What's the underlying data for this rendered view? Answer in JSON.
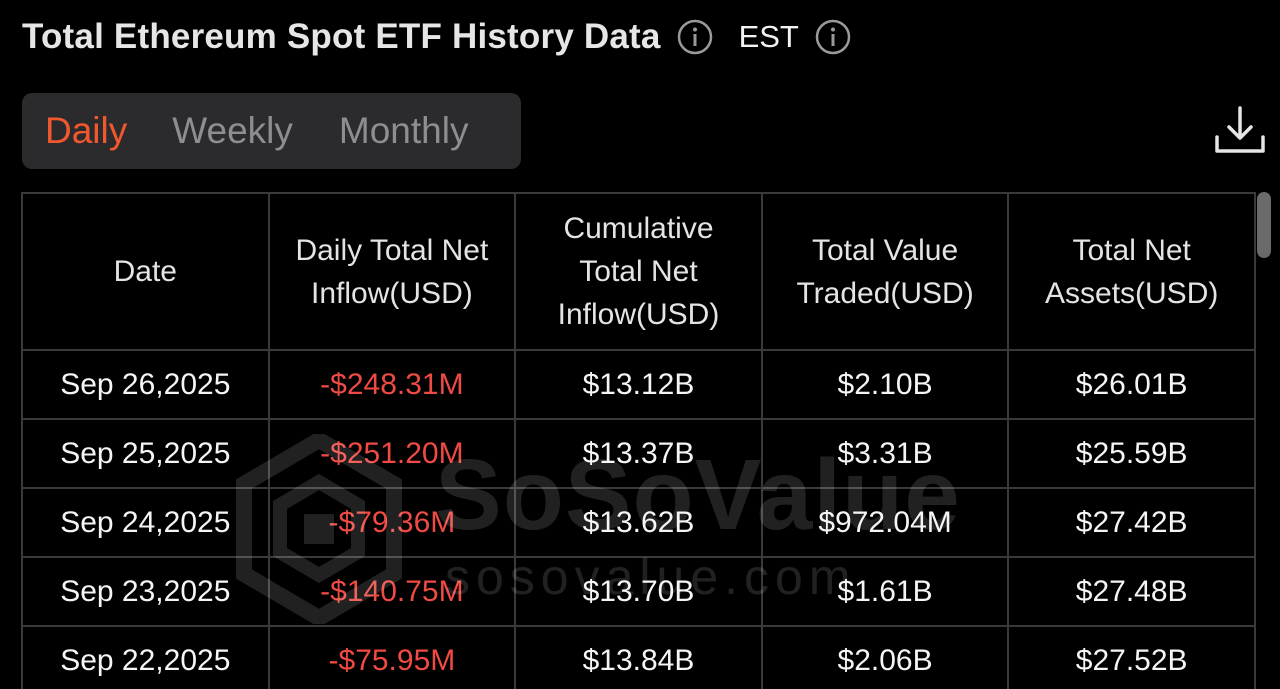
{
  "header": {
    "title": "Total Ethereum Spot ETF History Data",
    "title_info_icon": "info-circle-icon",
    "timezone": "EST",
    "timezone_info_icon": "info-circle-icon"
  },
  "tabs": [
    {
      "label": "Daily",
      "active": true
    },
    {
      "label": "Weekly",
      "active": false
    },
    {
      "label": "Monthly",
      "active": false
    }
  ],
  "download_icon": "download-icon",
  "colors": {
    "background": "#000000",
    "accent": "#f2582e",
    "negative": "#ef4a43",
    "tab_bar": "#2b2b2d",
    "grid": "#3a3a3c"
  },
  "table": {
    "columns": [
      "Date",
      "Daily Total Net Inflow(USD)",
      "Cumulative Total Net Inflow(USD)",
      "Total Value Traded(USD)",
      "Total Net Assets(USD)"
    ],
    "rows": [
      {
        "date": "Sep 26,2025",
        "daily_net_inflow": "-$248.31M",
        "cumulative_net_inflow": "$13.12B",
        "value_traded": "$2.10B",
        "net_assets": "$26.01B"
      },
      {
        "date": "Sep 25,2025",
        "daily_net_inflow": "-$251.20M",
        "cumulative_net_inflow": "$13.37B",
        "value_traded": "$3.31B",
        "net_assets": "$25.59B"
      },
      {
        "date": "Sep 24,2025",
        "daily_net_inflow": "-$79.36M",
        "cumulative_net_inflow": "$13.62B",
        "value_traded": "$972.04M",
        "net_assets": "$27.42B"
      },
      {
        "date": "Sep 23,2025",
        "daily_net_inflow": "-$140.75M",
        "cumulative_net_inflow": "$13.70B",
        "value_traded": "$1.61B",
        "net_assets": "$27.48B"
      },
      {
        "date": "Sep 22,2025",
        "daily_net_inflow": "-$75.95M",
        "cumulative_net_inflow": "$13.84B",
        "value_traded": "$2.06B",
        "net_assets": "$27.52B"
      }
    ]
  },
  "watermark": {
    "brand": "SoSoValue",
    "url": "sosovalue.com"
  }
}
